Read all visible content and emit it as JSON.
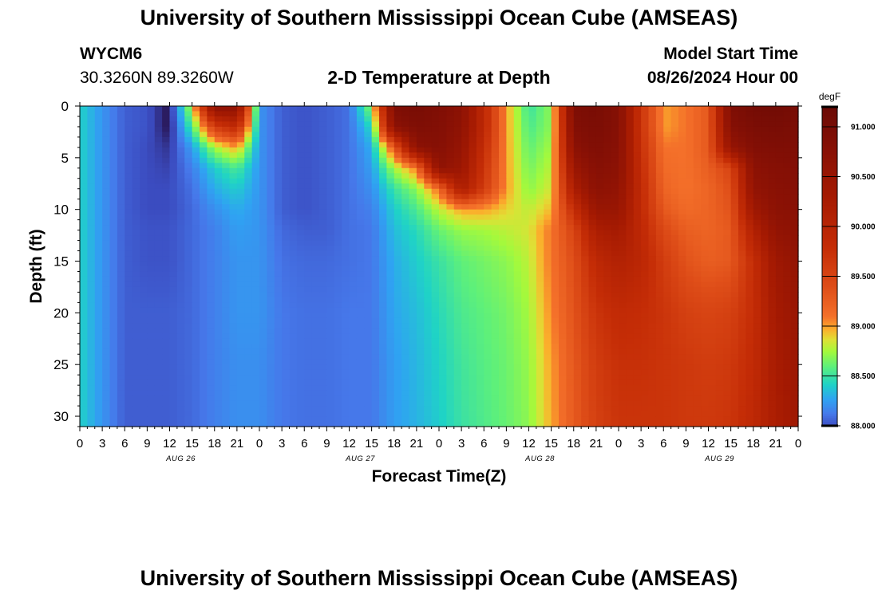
{
  "header": {
    "title": "University of Southern Mississippi Ocean Cube (AMSEAS)",
    "station_id": "WYCM6",
    "coordinates": "30.3260N  89.3260W",
    "chart_title": "2-D Temperature at Depth",
    "model_start_label": "Model Start Time",
    "model_start_value": "08/26/2024 Hour 00"
  },
  "footer": {
    "title": "University of Southern Mississippi Ocean Cube (AMSEAS)"
  },
  "chart_data": {
    "type": "heatmap",
    "title": "2-D Temperature at Depth",
    "xlabel": "Forecast Time(Z)",
    "ylabel": "Depth (ft)",
    "x_hours": [
      0,
      3,
      6,
      9,
      12,
      15,
      18,
      21,
      24,
      27,
      30,
      33,
      36,
      39,
      42,
      45,
      48,
      51,
      54,
      57,
      60,
      63,
      66,
      69,
      72,
      75,
      78,
      81,
      84,
      87,
      90,
      93,
      96
    ],
    "x_tick_labels": [
      "0",
      "3",
      "6",
      "9",
      "12",
      "15",
      "18",
      "21",
      "0",
      "3",
      "6",
      "9",
      "12",
      "15",
      "18",
      "21",
      "0",
      "3",
      "6",
      "9",
      "12",
      "15",
      "18",
      "21",
      "0",
      "3",
      "6",
      "9",
      "12",
      "15",
      "18",
      "21",
      "0"
    ],
    "day_labels": [
      {
        "text": "AUG 26",
        "hour": 13.5
      },
      {
        "text": "AUG 27",
        "hour": 37.5
      },
      {
        "text": "AUG 28",
        "hour": 61.5
      },
      {
        "text": "AUG 29",
        "hour": 85.5
      }
    ],
    "xlim": [
      0,
      96
    ],
    "ylim": [
      0,
      31
    ],
    "y_ticks": [
      0,
      5,
      10,
      15,
      20,
      25,
      30
    ],
    "y_inverted": true,
    "depth_levels_ft": [
      0,
      2,
      4,
      6,
      8,
      10,
      12,
      15,
      20,
      25,
      31
    ],
    "temperature_degF": [
      [
        88.42,
        88.22,
        88.05,
        88.02,
        87.88,
        88.82,
        90.72,
        90.68,
        88.22,
        88.05,
        88.02,
        88.05,
        88.1,
        88.72,
        90.92,
        91.0,
        90.9,
        90.7,
        89.9,
        89.0,
        88.5,
        88.7,
        90.92,
        91.0,
        90.8,
        89.7,
        89.0,
        89.1,
        89.3,
        90.9,
        91.05,
        91.1,
        91.0
      ],
      [
        88.42,
        88.22,
        88.05,
        88.02,
        87.88,
        88.55,
        89.6,
        89.9,
        88.22,
        88.05,
        88.02,
        88.05,
        88.1,
        88.45,
        90.7,
        90.9,
        90.85,
        90.65,
        89.9,
        89.0,
        88.55,
        88.7,
        90.85,
        90.95,
        90.8,
        89.7,
        89.0,
        89.1,
        89.3,
        90.8,
        90.95,
        91.0,
        90.95
      ],
      [
        88.42,
        88.22,
        88.05,
        88.0,
        87.95,
        88.25,
        88.75,
        89.0,
        88.22,
        88.05,
        88.02,
        88.05,
        88.1,
        88.3,
        89.3,
        90.7,
        90.8,
        90.55,
        89.8,
        89.0,
        88.6,
        88.75,
        90.7,
        90.9,
        90.75,
        89.75,
        89.1,
        89.1,
        89.3,
        90.55,
        90.85,
        90.9,
        90.9
      ],
      [
        88.42,
        88.22,
        88.05,
        88.0,
        87.98,
        88.15,
        88.4,
        88.55,
        88.22,
        88.05,
        88.02,
        88.05,
        88.1,
        88.25,
        88.75,
        89.1,
        90.65,
        90.45,
        89.7,
        89.0,
        88.65,
        88.8,
        90.45,
        90.8,
        90.7,
        89.8,
        89.15,
        89.1,
        89.25,
        89.5,
        90.7,
        90.8,
        90.85
      ],
      [
        88.42,
        88.22,
        88.05,
        88.0,
        88.0,
        88.1,
        88.3,
        88.4,
        88.22,
        88.05,
        88.02,
        88.05,
        88.1,
        88.2,
        88.5,
        88.7,
        89.15,
        90.2,
        89.6,
        89.0,
        88.7,
        88.85,
        90.2,
        90.7,
        90.6,
        89.85,
        89.2,
        89.1,
        89.2,
        89.4,
        90.6,
        90.75,
        90.8
      ],
      [
        88.42,
        88.22,
        88.05,
        88.0,
        88.0,
        88.08,
        88.2,
        88.3,
        88.22,
        88.05,
        88.02,
        88.05,
        88.1,
        88.15,
        88.4,
        88.55,
        88.8,
        89.0,
        89.0,
        88.9,
        88.8,
        88.95,
        89.8,
        90.5,
        90.5,
        89.85,
        89.3,
        89.15,
        89.2,
        89.35,
        90.4,
        90.7,
        90.75
      ],
      [
        88.42,
        88.22,
        88.05,
        88.02,
        88.02,
        88.08,
        88.15,
        88.25,
        88.22,
        88.08,
        88.05,
        88.05,
        88.1,
        88.12,
        88.35,
        88.45,
        88.62,
        88.72,
        88.75,
        88.8,
        88.85,
        89.1,
        89.5,
        90.2,
        90.3,
        89.9,
        89.45,
        89.25,
        89.2,
        89.3,
        90.1,
        90.6,
        90.7
      ],
      [
        88.42,
        88.22,
        88.05,
        88.02,
        88.02,
        88.08,
        88.15,
        88.22,
        88.22,
        88.1,
        88.08,
        88.08,
        88.1,
        88.12,
        88.3,
        88.4,
        88.5,
        88.6,
        88.65,
        88.7,
        88.8,
        89.1,
        89.4,
        89.9,
        90.1,
        89.95,
        89.6,
        89.35,
        89.25,
        89.3,
        89.8,
        90.4,
        90.6
      ],
      [
        88.42,
        88.22,
        88.05,
        88.05,
        88.05,
        88.08,
        88.15,
        88.22,
        88.22,
        88.12,
        88.1,
        88.1,
        88.12,
        88.12,
        88.28,
        88.35,
        88.45,
        88.55,
        88.6,
        88.65,
        88.75,
        89.05,
        89.35,
        89.7,
        89.85,
        89.8,
        89.7,
        89.55,
        89.5,
        89.55,
        89.8,
        90.3,
        90.5
      ],
      [
        88.42,
        88.22,
        88.05,
        88.05,
        88.05,
        88.08,
        88.15,
        88.2,
        88.2,
        88.12,
        88.1,
        88.1,
        88.12,
        88.12,
        88.25,
        88.33,
        88.42,
        88.52,
        88.58,
        88.63,
        88.72,
        89.0,
        89.3,
        89.6,
        89.75,
        89.75,
        89.7,
        89.65,
        89.6,
        89.65,
        89.85,
        90.25,
        90.45
      ],
      [
        88.42,
        88.22,
        88.05,
        88.05,
        88.05,
        88.08,
        88.15,
        88.2,
        88.2,
        88.12,
        88.1,
        88.1,
        88.12,
        88.12,
        88.25,
        88.32,
        88.4,
        88.5,
        88.56,
        88.62,
        88.7,
        88.98,
        89.28,
        89.55,
        89.7,
        89.7,
        89.7,
        89.65,
        89.65,
        89.7,
        89.9,
        90.2,
        90.4
      ]
    ],
    "colorbar": {
      "unit": "degF",
      "min": 88.0,
      "max": 91.2,
      "ticks": [
        88.0,
        88.5,
        89.0,
        89.5,
        90.0,
        90.5,
        91.0
      ],
      "tick_labels": [
        "88.000",
        "88.500",
        "89.000",
        "89.500",
        "90.000",
        "90.500",
        "91.000"
      ]
    },
    "colormap": [
      [
        87.9,
        "#2a1a5e"
      ],
      [
        88.0,
        "#3b4cc0"
      ],
      [
        88.12,
        "#4678ea"
      ],
      [
        88.27,
        "#2fa3f2"
      ],
      [
        88.42,
        "#1fd3c6"
      ],
      [
        88.6,
        "#5ef07a"
      ],
      [
        88.75,
        "#a4f93c"
      ],
      [
        88.87,
        "#dfe035"
      ],
      [
        88.97,
        "#fbaf2c"
      ],
      [
        89.1,
        "#f4702a"
      ],
      [
        89.4,
        "#de4d18"
      ],
      [
        89.8,
        "#c42c06"
      ],
      [
        90.3,
        "#a51a02"
      ],
      [
        90.8,
        "#861005"
      ],
      [
        91.2,
        "#6b0a05"
      ]
    ],
    "grid": false
  }
}
